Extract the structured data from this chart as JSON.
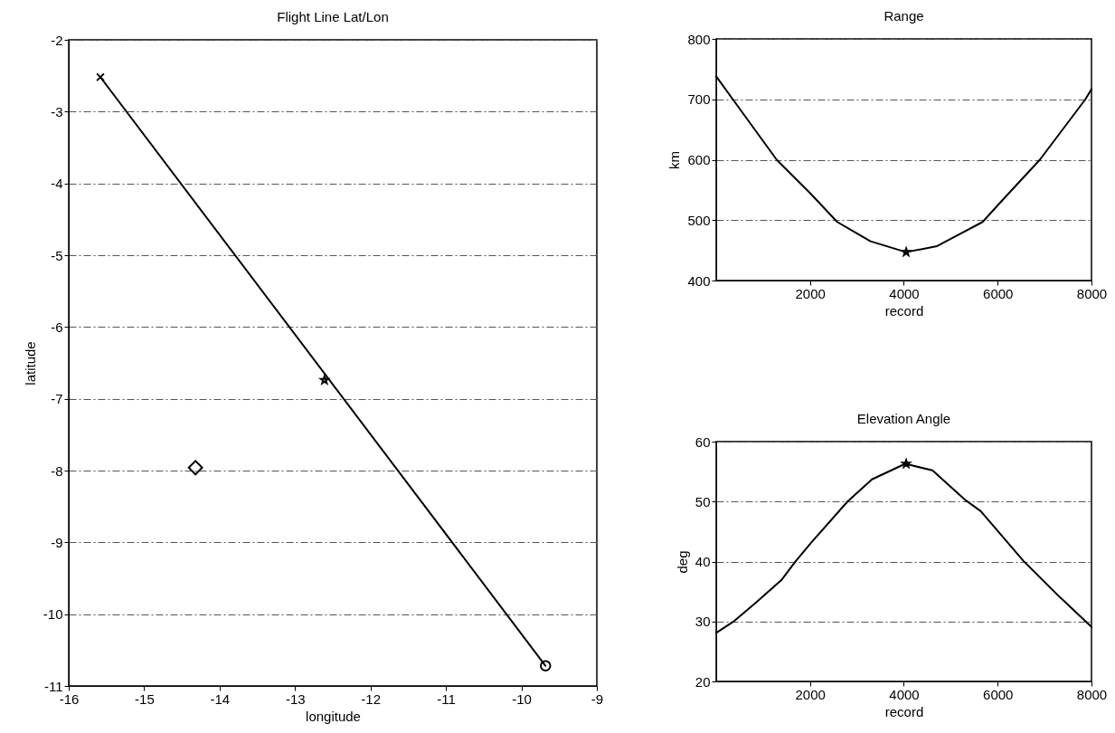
{
  "chart_data": [
    {
      "type": "line",
      "title": "Flight Line Lat/Lon",
      "xlabel": "longitude",
      "ylabel": "latitude",
      "xlim": [
        -16,
        -9
      ],
      "ylim": [
        -11,
        -2
      ],
      "xticks": [
        -16,
        -15,
        -14,
        -13,
        -12,
        -11,
        -10,
        -9
      ],
      "yticks": [
        -11,
        -10,
        -9,
        -8,
        -7,
        -6,
        -5,
        -4,
        -3,
        -2
      ],
      "grid": "y",
      "series": [
        {
          "type": "line",
          "color": "#000000",
          "x": [
            -15.58,
            -9.68
          ],
          "values": [
            -2.52,
            -10.72
          ]
        },
        {
          "type": "scatter",
          "color": "#000000",
          "marker": "cross",
          "x": [
            -15.58
          ],
          "values": [
            -2.52
          ]
        },
        {
          "type": "scatter",
          "color": "#000000",
          "marker": "star",
          "x": [
            -12.61
          ],
          "values": [
            -6.74
          ]
        },
        {
          "type": "scatter",
          "color": "#000000",
          "marker": "circle",
          "x": [
            -9.68
          ],
          "values": [
            -10.72
          ]
        },
        {
          "type": "scatter",
          "color": "#000000",
          "marker": "diamond",
          "x": [
            -14.32
          ],
          "values": [
            -7.96
          ]
        }
      ]
    },
    {
      "type": "line",
      "title": "Range",
      "xlabel": "record",
      "ylabel": "km",
      "xlim": [
        1,
        8000
      ],
      "ylim": [
        400,
        800
      ],
      "xticks": [
        2000,
        4000,
        6000,
        8000
      ],
      "yticks": [
        400,
        500,
        600,
        700,
        800
      ],
      "grid": "y",
      "series": [
        {
          "type": "line",
          "color": "#000000",
          "x": [
            1,
            355,
            1290,
            2000,
            2580,
            3290,
            4050,
            4710,
            5680,
            6065,
            6900,
            7870,
            8000
          ],
          "values": [
            738,
            700,
            600,
            545,
            497,
            465,
            447,
            457,
            497,
            530,
            600,
            700,
            717
          ]
        },
        {
          "type": "scatter",
          "color": "#000000",
          "marker": "star",
          "x": [
            4050
          ],
          "values": [
            447
          ]
        }
      ]
    },
    {
      "type": "line",
      "title": "Elevation Angle",
      "xlabel": "record",
      "ylabel": "deg",
      "xlim": [
        1,
        8000
      ],
      "ylim": [
        20,
        60
      ],
      "xticks": [
        2000,
        4000,
        6000,
        8000
      ],
      "yticks": [
        20,
        30,
        40,
        50,
        60
      ],
      "grid": "y",
      "series": [
        {
          "type": "line",
          "color": "#000000",
          "x": [
            1,
            390,
            840,
            1390,
            1680,
            2030,
            2800,
            3320,
            4030,
            4610,
            5320,
            5640,
            6550,
            7320,
            8000
          ],
          "values": [
            28.1,
            30.1,
            33.1,
            36.9,
            39.9,
            43.2,
            50,
            53.7,
            56.3,
            55.2,
            50.2,
            48.4,
            40.1,
            34.1,
            29.1
          ]
        },
        {
          "type": "scatter",
          "color": "#000000",
          "marker": "star",
          "x": [
            4050
          ],
          "values": [
            56.3
          ]
        }
      ]
    }
  ]
}
